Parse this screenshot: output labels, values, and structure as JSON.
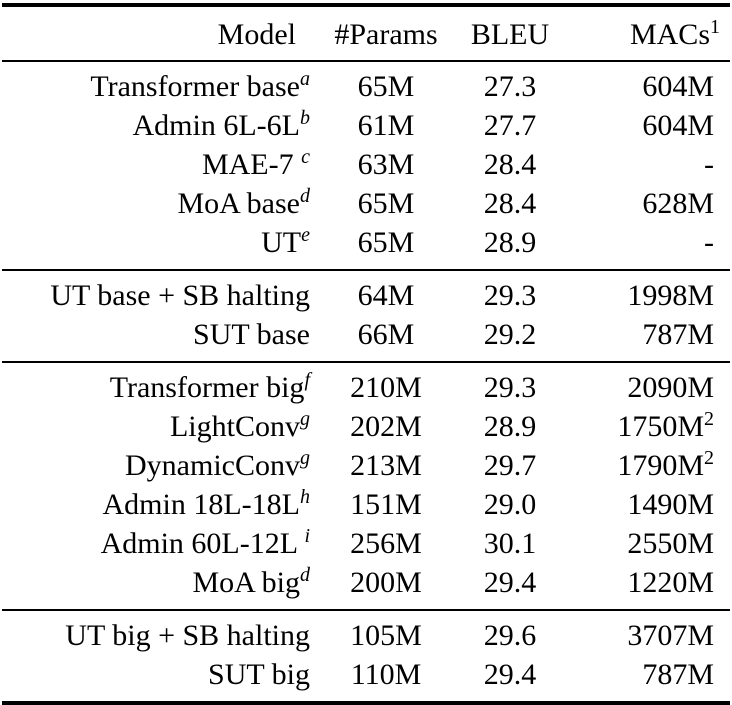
{
  "table": {
    "columns": [
      {
        "label": "Model",
        "sup": ""
      },
      {
        "label": "#Params",
        "sup": ""
      },
      {
        "label": "BLEU",
        "sup": ""
      },
      {
        "label": "MACs",
        "sup": "1"
      }
    ],
    "sections": [
      {
        "rows": [
          {
            "model": "Transformer base",
            "model_sup": "a",
            "params": "65M",
            "bleu": "27.3",
            "macs": "604M",
            "macs_sup": ""
          },
          {
            "model": "Admin 6L-6L",
            "model_sup": "b",
            "params": "61M",
            "bleu": "27.7",
            "macs": "604M",
            "macs_sup": ""
          },
          {
            "model": "MAE-7 ",
            "model_sup": "c",
            "params": "63M",
            "bleu": "28.4",
            "macs": "-",
            "macs_sup": ""
          },
          {
            "model": "MoA base",
            "model_sup": "d",
            "params": "65M",
            "bleu": "28.4",
            "macs": "628M",
            "macs_sup": ""
          },
          {
            "model": "UT",
            "model_sup": "e",
            "params": "65M",
            "bleu": "28.9",
            "macs": "-",
            "macs_sup": ""
          }
        ]
      },
      {
        "rows": [
          {
            "model": "UT base + SB halting",
            "model_sup": "",
            "params": "64M",
            "bleu": "29.3",
            "macs": "1998M",
            "macs_sup": ""
          },
          {
            "model": "SUT base",
            "model_sup": "",
            "params": "66M",
            "bleu": "29.2",
            "macs": "787M",
            "macs_sup": ""
          }
        ]
      },
      {
        "rows": [
          {
            "model": "Transformer big",
            "model_sup": "f",
            "params": "210M",
            "bleu": "29.3",
            "macs": "2090M",
            "macs_sup": ""
          },
          {
            "model": "LightConv",
            "model_sup": "g",
            "params": "202M",
            "bleu": "28.9",
            "macs": "1750M",
            "macs_sup": "2"
          },
          {
            "model": "DynamicConv",
            "model_sup": "g",
            "params": "213M",
            "bleu": "29.7",
            "macs": "1790M",
            "macs_sup": "2"
          },
          {
            "model": "Admin 18L-18L",
            "model_sup": "h",
            "params": "151M",
            "bleu": "29.0",
            "macs": "1490M",
            "macs_sup": ""
          },
          {
            "model": "Admin 60L-12L ",
            "model_sup": "i",
            "params": "256M",
            "bleu": "30.1",
            "macs": "2550M",
            "macs_sup": ""
          },
          {
            "model": "MoA big",
            "model_sup": "d",
            "params": "200M",
            "bleu": "29.4",
            "macs": "1220M",
            "macs_sup": ""
          }
        ]
      },
      {
        "rows": [
          {
            "model": "UT big + SB halting",
            "model_sup": "",
            "params": "105M",
            "bleu": "29.6",
            "macs": "3707M",
            "macs_sup": ""
          },
          {
            "model": "SUT big",
            "model_sup": "",
            "params": "110M",
            "bleu": "29.4",
            "macs": "787M",
            "macs_sup": ""
          }
        ]
      }
    ]
  }
}
